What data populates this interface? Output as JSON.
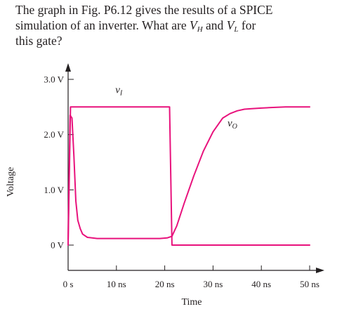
{
  "problem": {
    "line1": "The graph in Fig. P6.12 gives the results of a SPICE",
    "line2_pre": "simulation of an inverter. What are ",
    "line2_vh_main": "V",
    "line2_vh_sub": "H",
    "line2_mid": " and ",
    "line2_vl_main": "V",
    "line2_vl_sub": "L",
    "line2_post": " for",
    "line3": "this gate?"
  },
  "colors": {
    "curve": "#e8127c",
    "axis": "#231f20",
    "text": "#231f20"
  },
  "chart_data": {
    "type": "line",
    "title": "",
    "xlabel": "Time",
    "ylabel": "Voltage",
    "xlim": [
      0,
      50
    ],
    "ylim": [
      0,
      3.0
    ],
    "x_unit": "ns",
    "y_unit": "V",
    "x_ticks": [
      0,
      10,
      20,
      30,
      40,
      50
    ],
    "x_tick_labels": [
      "0 s",
      "10 ns",
      "20 ns",
      "30 ns",
      "40 ns",
      "50 ns"
    ],
    "y_ticks": [
      0,
      1.0,
      2.0,
      3.0
    ],
    "y_tick_labels": [
      "0 V",
      "1.0 V",
      "2.0 V",
      "3.0 V"
    ],
    "grid": false,
    "legend": "none",
    "series": [
      {
        "name": "",
        "label_main": "v",
        "label_sub": "I",
        "x": [
          0,
          0.5,
          21,
          21.5,
          50
        ],
        "y": [
          0,
          2.5,
          2.5,
          0,
          0
        ]
      },
      {
        "name": "",
        "label_main": "v",
        "label_sub": "O",
        "x": [
          0,
          0.4,
          0.8,
          1.2,
          1.6,
          2,
          2.5,
          3,
          4,
          6,
          10,
          15,
          19,
          20.5,
          21.5,
          22.5,
          24,
          26,
          28,
          30,
          32,
          33.5,
          35,
          36.5,
          38,
          40,
          42,
          45,
          50
        ],
        "y": [
          0.1,
          2.35,
          2.3,
          1.6,
          0.8,
          0.45,
          0.3,
          0.2,
          0.14,
          0.12,
          0.12,
          0.12,
          0.12,
          0.13,
          0.16,
          0.35,
          0.75,
          1.25,
          1.7,
          2.05,
          2.3,
          2.38,
          2.43,
          2.46,
          2.47,
          2.48,
          2.49,
          2.5,
          2.5
        ]
      }
    ],
    "annotations": [
      {
        "text_main": "v",
        "text_sub": "I",
        "x": 10.5,
        "y": 2.75,
        "series": 0
      },
      {
        "text_main": "v",
        "text_sub": "O",
        "x": 34,
        "y": 2.15,
        "series": 1
      }
    ]
  }
}
